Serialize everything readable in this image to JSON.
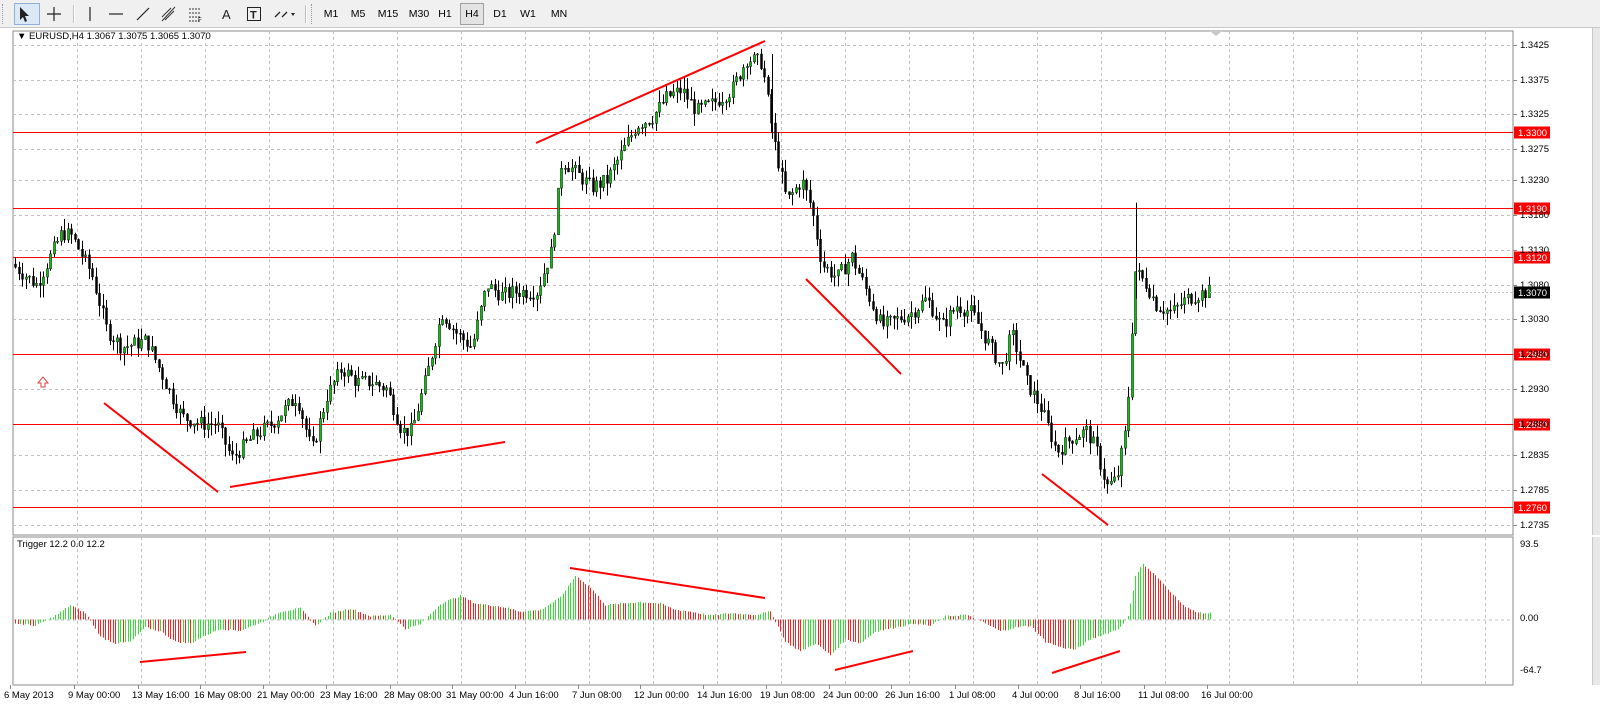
{
  "toolbar": {
    "tools": [
      {
        "name": "cursor-tool",
        "icon": "arrow-cursor-icon",
        "active": true
      },
      {
        "name": "crosshair-tool",
        "icon": "crosshair-icon"
      },
      {
        "name": "vertical-line-tool",
        "icon": "vertical-line-icon"
      },
      {
        "name": "horizontal-line-tool",
        "icon": "horizontal-line-icon"
      },
      {
        "name": "trendline-tool",
        "icon": "trendline-icon"
      },
      {
        "name": "equidistant-channel-tool",
        "icon": "channel-icon"
      },
      {
        "name": "fibonacci-tool",
        "icon": "fibonacci-icon"
      },
      {
        "name": "text-tool",
        "icon": "text-icon",
        "label": "A"
      },
      {
        "name": "text-label-tool",
        "icon": "text-label-icon",
        "label": "T"
      },
      {
        "name": "arrows-tool",
        "icon": "arrows-dropdown-icon"
      }
    ],
    "periods": [
      "M1",
      "M5",
      "M15",
      "M30",
      "H1",
      "H4",
      "D1",
      "W1",
      "MN"
    ],
    "active_period": "H4"
  },
  "chart": {
    "header": "EURUSD,H4  1.3067 1.3075 1.3065 1.3070",
    "price_ticks": [
      "1.3425",
      "1.3375",
      "1.3325",
      "1.3275",
      "1.3230",
      "1.3180",
      "1.3130",
      "1.3080",
      "1.3030",
      "1.2980",
      "1.2930",
      "1.2880",
      "1.2835",
      "1.2785",
      "1.2735"
    ],
    "levels": [
      "1.3300",
      "1.3190",
      "1.3120",
      "1.2980",
      "1.2880",
      "1.2760"
    ],
    "current_price": "1.3070",
    "colors": {
      "bull": "#00aa00",
      "bear": "#ff0000",
      "level": "#ff0000",
      "grid": "#c0c0c0"
    },
    "indicator": {
      "label": "Trigger 12.2 0.0 12.2",
      "ticks": [
        "93.5",
        "0.00",
        "-64.7"
      ]
    },
    "time_labels": [
      "6 May 2013",
      "9 May 00:00",
      "13 May 16:00",
      "16 May 08:00",
      "21 May 00:00",
      "23 May 16:00",
      "28 May 08:00",
      "31 May 00:00",
      "4 Jun 16:00",
      "7 Jun 08:00",
      "12 Jun 00:00",
      "14 Jun 16:00",
      "19 Jun 08:00",
      "24 Jun 00:00",
      "26 Jun 16:00",
      "1 Jul 08:00",
      "4 Jul 00:00",
      "8 Jul 16:00",
      "11 Jul 08:00",
      "16 Jul 00:00"
    ]
  }
}
